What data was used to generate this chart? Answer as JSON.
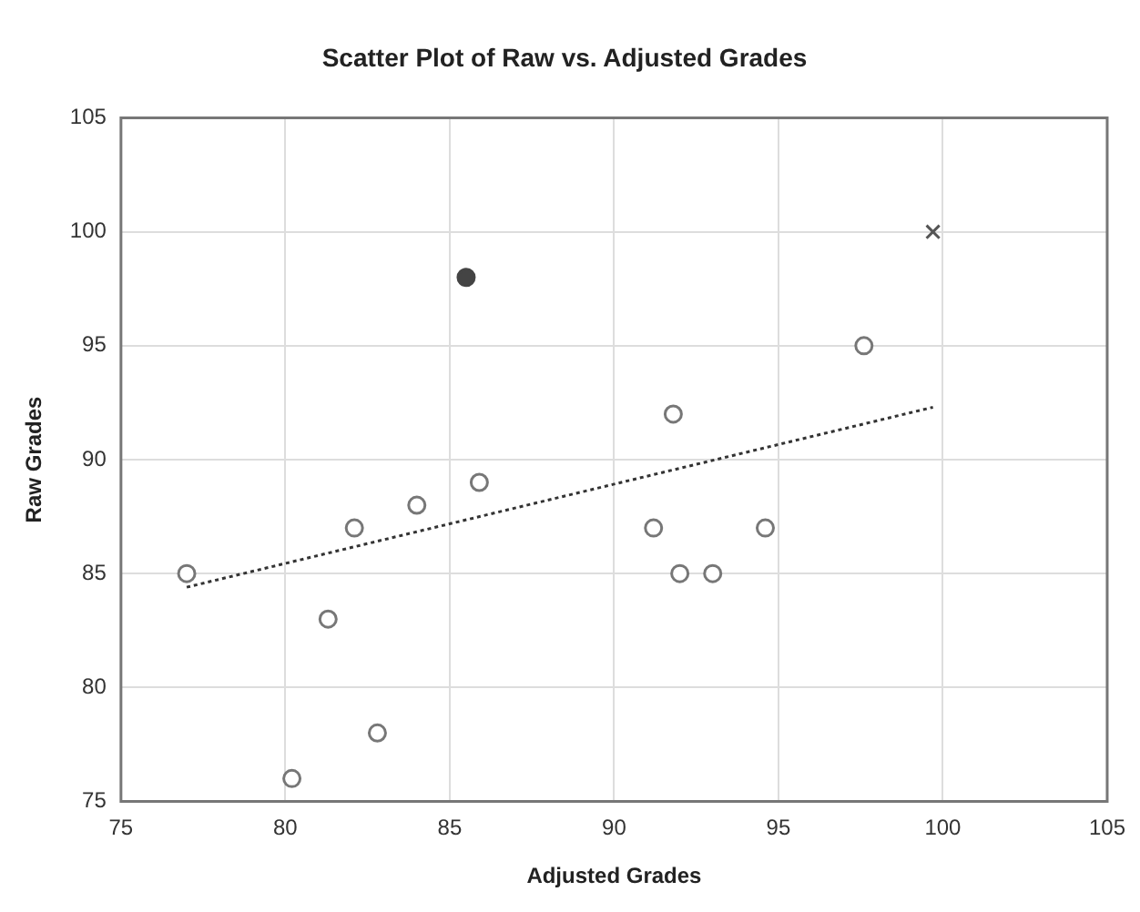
{
  "chart_data": {
    "type": "scatter",
    "title": "Scatter Plot of Raw vs. Adjusted Grades",
    "xlabel": "Adjusted Grades",
    "ylabel": "Raw Grades",
    "xlim": [
      75,
      105
    ],
    "xticks": [
      75,
      80,
      85,
      90,
      95,
      100,
      105
    ],
    "ylim": [
      75,
      105
    ],
    "yticks": [
      75,
      80,
      85,
      90,
      95,
      100,
      105
    ],
    "grid": true,
    "legend": false,
    "series": [
      {
        "color": "#777777",
        "marker": "circle",
        "x": [
          77.0,
          80.2,
          81.3,
          82.1,
          82.8,
          84.0,
          85.9,
          91.2,
          91.8,
          92.0,
          93.0,
          94.6,
          97.6
        ],
        "values": [
          85,
          76,
          83,
          87,
          78,
          88,
          89,
          87,
          92,
          85,
          85,
          87,
          95
        ]
      },
      {
        "color": "#444444",
        "marker": "circle",
        "x": [
          85.5
        ],
        "values": [
          98
        ]
      },
      {
        "color": "#555555",
        "marker": "cross",
        "x": [
          99.7
        ],
        "values": [
          100
        ]
      },
      {
        "type": "line",
        "color": "#333333",
        "marker": "none",
        "line_style": "dotted",
        "x": [
          77.0,
          99.7
        ],
        "values": [
          84.4,
          92.3
        ]
      }
    ]
  }
}
